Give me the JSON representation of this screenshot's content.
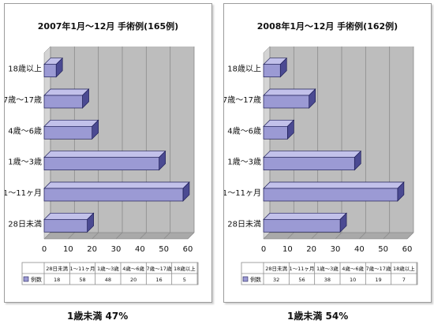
{
  "chart_data": [
    {
      "type": "bar",
      "orientation": "horizontal",
      "title": "2007年1月～12月 手術例(165例)",
      "categories": [
        "28日未満",
        "1～11ヶ月",
        "1歳～3歳",
        "4歳～6歳",
        "7歳～17歳",
        "18歳以上"
      ],
      "series": [
        {
          "name": "例数",
          "values": [
            18,
            58,
            48,
            20,
            16,
            5
          ]
        }
      ],
      "xlim": [
        0,
        60
      ],
      "xticks": [
        0,
        10,
        20,
        30,
        40,
        50,
        60
      ],
      "grid": true,
      "legend": "data-table"
    },
    {
      "type": "bar",
      "orientation": "horizontal",
      "title": "2008年1月～12月 手術例(162例)",
      "categories": [
        "28日未満",
        "1～11ヶ月",
        "1歳～3歳",
        "4歳～6歳",
        "7歳～17歳",
        "18歳以上"
      ],
      "series": [
        {
          "name": "例数",
          "values": [
            32,
            56,
            38,
            10,
            19,
            7
          ]
        }
      ],
      "xlim": [
        0,
        60
      ],
      "xticks": [
        0,
        10,
        20,
        30,
        40,
        50,
        60
      ],
      "grid": true,
      "legend": "data-table"
    }
  ],
  "captions": [
    "1歳未満 47%",
    "1歳未満 54%"
  ],
  "colors": {
    "bar_front": "#9b9ad4",
    "bar_top": "#c2c1ea",
    "bar_side": "#4b4a92",
    "bar_stroke": "#1e1e58",
    "wall": "#bdbdbd",
    "wall_side": "#d4d4d4",
    "floor": "#a9a9a9",
    "grid": "#8a8a8a"
  }
}
